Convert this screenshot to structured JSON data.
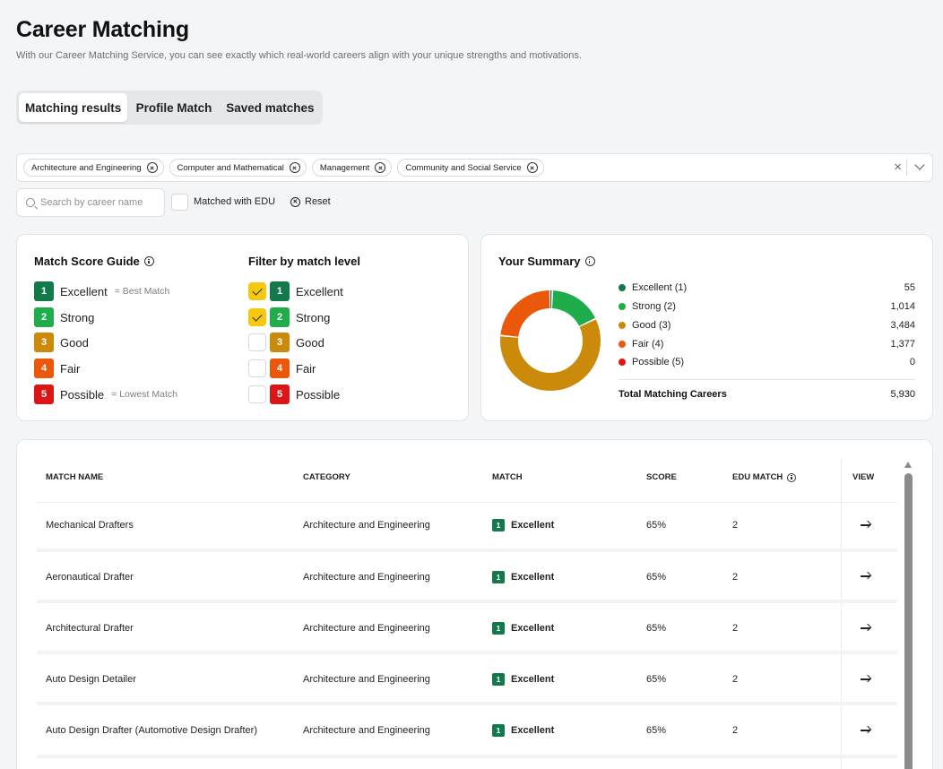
{
  "header": {
    "title": "Career Matching",
    "subtitle": "With our Career Matching Service, you can see exactly which real-world careers align with your unique strengths and motivations."
  },
  "tabs": [
    {
      "label": "Matching results",
      "active": true
    },
    {
      "label": "Profile Match",
      "active": false
    },
    {
      "label": "Saved matches",
      "active": false
    }
  ],
  "filters": {
    "chips": [
      "Architecture and Engineering",
      "Computer and Mathematical",
      "Management",
      "Community and Social Service"
    ],
    "clear_glyph": "×",
    "search_placeholder": "Search by career name",
    "edu_label": "Matched with EDU",
    "edu_checked": false,
    "reset_label": "Reset"
  },
  "colors": {
    "excellent": "#127a4a",
    "strong": "#1fac4b",
    "good": "#cc8a0a",
    "fair": "#ea580c",
    "possible": "#dc1616",
    "checkbox_on": "#f6c90e"
  },
  "guide": {
    "title": "Match Score Guide",
    "levels": [
      {
        "num": "1",
        "label": "Excellent",
        "note": "= Best Match"
      },
      {
        "num": "2",
        "label": "Strong",
        "note": ""
      },
      {
        "num": "3",
        "label": "Good",
        "note": ""
      },
      {
        "num": "4",
        "label": "Fair",
        "note": ""
      },
      {
        "num": "5",
        "label": "Possible",
        "note": "= Lowest Match"
      }
    ]
  },
  "filter_level": {
    "title": "Filter by match level",
    "checked": [
      true,
      true,
      false,
      false,
      false
    ]
  },
  "summary": {
    "title": "Your Summary",
    "items": [
      {
        "label": "Excellent (1)",
        "value": "55",
        "count": 55
      },
      {
        "label": "Strong (2)",
        "value": "1,014",
        "count": 1014
      },
      {
        "label": "Good (3)",
        "value": "3,484",
        "count": 3484
      },
      {
        "label": "Fair (4)",
        "value": "1,377",
        "count": 1377
      },
      {
        "label": "Possible (5)",
        "value": "0",
        "count": 0
      }
    ],
    "total_label": "Total Matching Careers",
    "total_value": "5,930"
  },
  "table": {
    "headers": {
      "name": "MATCH NAME",
      "category": "CATEGORY",
      "match": "MATCH",
      "score": "SCORE",
      "edu": "EDU MATCH",
      "view": "VIEW"
    },
    "rows": [
      {
        "name": "Mechanical Drafters",
        "category": "Architecture and Engineering",
        "match_num": "1",
        "match_label": "Excellent",
        "score": "65%",
        "edu": "2"
      },
      {
        "name": "Aeronautical Drafter",
        "category": "Architecture and Engineering",
        "match_num": "1",
        "match_label": "Excellent",
        "score": "65%",
        "edu": "2"
      },
      {
        "name": "Architectural Drafter",
        "category": "Architecture and Engineering",
        "match_num": "1",
        "match_label": "Excellent",
        "score": "65%",
        "edu": "2"
      },
      {
        "name": "Auto Design Detailer",
        "category": "Architecture and Engineering",
        "match_num": "1",
        "match_label": "Excellent",
        "score": "65%",
        "edu": "2"
      },
      {
        "name": "Auto Design Drafter (Automotive Design Drafter)",
        "category": "Architecture and Engineering",
        "match_num": "1",
        "match_label": "Excellent",
        "score": "65%",
        "edu": "2"
      }
    ]
  }
}
